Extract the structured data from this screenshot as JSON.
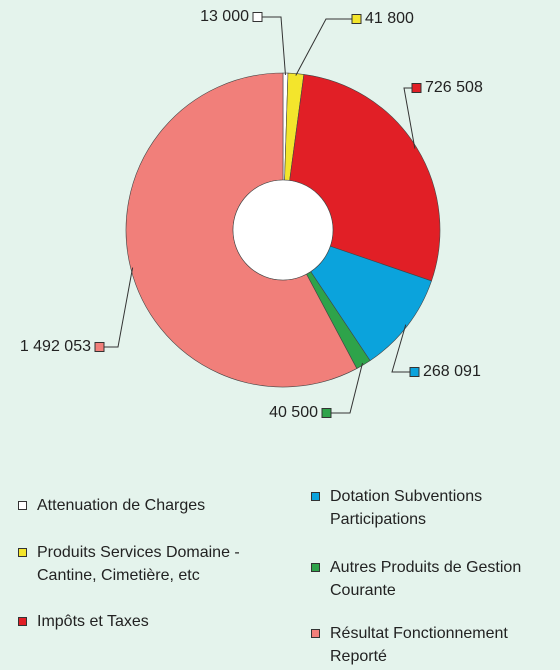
{
  "chart_data": {
    "type": "donut",
    "categories": [
      "Attenuation de Charges",
      "Produits Services Domaine - Cantine, Cimetière, etc",
      "Impôts et Taxes",
      "Dotation Subventions Participations",
      "Autres Produits de Gestion Courante",
      "Résultat Fonctionnement Reporté"
    ],
    "values": [
      13000,
      41800,
      726508,
      268091,
      40500,
      1492053
    ],
    "value_labels": [
      "13 000",
      "41 800",
      "726 508",
      "268 091",
      "40 500",
      "1 492 053"
    ],
    "colors": [
      "#ffffff",
      "#f3e52c",
      "#e11f26",
      "#0ba3dc",
      "#2ea34a",
      "#f17f7a"
    ]
  }
}
